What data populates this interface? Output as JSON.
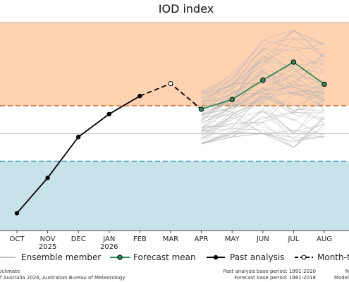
{
  "chart_data": {
    "type": "line",
    "title": "IOD index",
    "xlabel": "",
    "ylabel": "",
    "x_ticks": [
      {
        "month": "OCT",
        "year": ""
      },
      {
        "month": "NOV",
        "year": "2025"
      },
      {
        "month": "DEC",
        "year": ""
      },
      {
        "month": "JAN",
        "year": "2026"
      },
      {
        "month": "FEB",
        "year": ""
      },
      {
        "month": "MAR",
        "year": ""
      },
      {
        "month": "APR",
        "year": ""
      },
      {
        "month": "MAY",
        "year": ""
      },
      {
        "month": "JUN",
        "year": ""
      },
      {
        "month": "JUL",
        "year": ""
      },
      {
        "month": "AUG",
        "year": ""
      }
    ],
    "ylim": [
      -1.4,
      1.6
    ],
    "thresholds": {
      "positive": {
        "value": 0.4,
        "color": "#d2691e"
      },
      "negative": {
        "value": -0.4,
        "color": "#3a9bc1"
      }
    },
    "shading": {
      "positive": "#ffd2b2",
      "negative": "#c8e2ea"
    },
    "grid": false,
    "legend_placement": "bottom",
    "series": [
      {
        "name": "Past analysis",
        "color": "#000000",
        "x": [
          "OCT",
          "NOV",
          "DEC",
          "JAN",
          "FEB"
        ],
        "values": [
          -1.15,
          -0.64,
          -0.05,
          0.28,
          0.54
        ]
      },
      {
        "name": "Month-to-date",
        "color": "#000000",
        "x": [
          "FEB",
          "MAR",
          "APR"
        ],
        "values": [
          0.54,
          0.72,
          0.35
        ]
      },
      {
        "name": "Forecast mean",
        "color": "#2e8b57",
        "x": [
          "APR",
          "MAY",
          "JUN",
          "JUL",
          "AUG"
        ],
        "values": [
          0.35,
          0.49,
          0.77,
          1.03,
          0.71
        ]
      },
      {
        "name": "Ensemble member",
        "color": "#b0b0b0",
        "x": [
          "APR",
          "MAY",
          "JUN",
          "JUL",
          "AUG"
        ],
        "band_low": [
          -0.15,
          -0.05,
          0.0,
          -0.2,
          -0.05
        ],
        "band_high": [
          0.6,
          0.95,
          1.35,
          1.5,
          1.3
        ]
      }
    ],
    "footer": {
      "left_line1": "/climate",
      "left_line2": "f Australia 2026, Australian Bureau of Meteorology",
      "right_line1": "Past analysis base period: 1991-2020",
      "right_line2": "Forecast base period: 1981-2018",
      "far_right_line1": "N",
      "far_right_line2": "Model"
    },
    "legend": {
      "ensemble": "Ensemble member",
      "forecast": "Forecast mean",
      "past": "Past analysis",
      "mtd": "Month-to"
    }
  }
}
